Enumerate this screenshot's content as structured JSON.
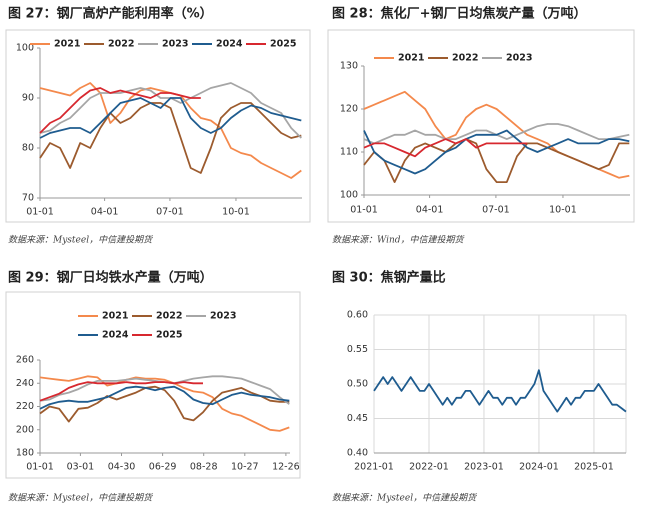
{
  "chart_data": [
    {
      "type": "line",
      "title": "图 27：钢厂高炉产能利用率（%）",
      "source": "数据来源：Mysteel，中信建投期货",
      "x": [
        0,
        14,
        28,
        42,
        56,
        70,
        84,
        98,
        112,
        126,
        140,
        154,
        168,
        182,
        196,
        210,
        224,
        238,
        252,
        266,
        280,
        294,
        308,
        322,
        336,
        350,
        364
      ],
      "xlim": [
        0,
        365
      ],
      "xticks": [
        {
          "value": 0,
          "label": "01-01"
        },
        {
          "value": 90,
          "label": "04-01"
        },
        {
          "value": 181,
          "label": "07-01"
        },
        {
          "value": 273,
          "label": "10-01"
        }
      ],
      "ylim": [
        70,
        100
      ],
      "yticks": [
        70,
        80,
        90,
        100
      ],
      "grid": false,
      "legend": "top",
      "series": [
        {
          "name": "2021",
          "color": "#f4894c",
          "values": [
            92,
            91.5,
            91,
            90.5,
            92,
            93,
            91,
            85,
            87,
            90,
            91.5,
            92,
            91.5,
            91,
            90.5,
            88,
            86,
            85.5,
            84,
            80,
            79,
            78.5,
            77,
            76,
            75,
            74,
            75.5
          ]
        },
        {
          "name": "2022",
          "color": "#9c5b2e",
          "values": [
            78,
            81,
            80,
            76,
            81,
            80,
            84,
            87,
            85,
            86,
            88,
            89,
            89,
            88,
            82,
            76,
            75,
            80,
            86,
            88,
            89,
            89,
            87,
            85,
            83,
            82,
            82.5
          ]
        },
        {
          "name": "2023",
          "color": "#a6a6a6",
          "values": [
            83,
            83.5,
            85,
            86,
            88,
            90,
            91,
            91,
            91,
            91.5,
            92,
            91.5,
            90,
            90,
            89,
            90,
            91,
            92,
            92.5,
            93,
            92,
            91,
            89,
            88,
            87,
            84,
            82
          ]
        },
        {
          "name": "2024",
          "color": "#1f5c8f",
          "values": [
            82,
            83,
            83.5,
            84,
            84,
            83,
            85,
            87,
            89,
            89.5,
            90,
            89,
            88,
            90,
            90,
            86,
            84,
            83,
            84,
            86,
            87.5,
            88.5,
            88,
            87,
            86.5,
            86,
            85.5
          ]
        },
        {
          "name": "2025",
          "color": "#d7282f",
          "values": [
            83,
            85,
            86,
            88,
            90,
            91.5,
            92,
            91,
            91.5,
            91,
            90.5,
            90,
            91,
            91,
            90.5,
            90,
            90,
            null,
            null,
            null,
            null,
            null,
            null,
            null,
            null,
            null,
            null
          ]
        }
      ]
    },
    {
      "type": "line",
      "title": "图 28：焦化厂+钢厂日均焦炭产量（万吨）",
      "source": "数据来源：Wind，中信建投期货",
      "x": [
        0,
        14,
        28,
        42,
        56,
        70,
        84,
        98,
        112,
        126,
        140,
        154,
        168,
        182,
        196,
        210,
        224,
        238,
        252,
        266,
        280,
        294,
        308,
        322,
        336,
        350,
        364
      ],
      "xlim": [
        0,
        365
      ],
      "xticks": [
        {
          "value": 0,
          "label": "01-01"
        },
        {
          "value": 90,
          "label": "04-01"
        },
        {
          "value": 181,
          "label": "07-01"
        },
        {
          "value": 273,
          "label": "10-01"
        }
      ],
      "ylim": [
        100,
        130
      ],
      "yticks": [
        100,
        110,
        120,
        130
      ],
      "grid": false,
      "legend": "top",
      "series": [
        {
          "name": "2021",
          "color": "#f4894c",
          "values": [
            120,
            121,
            122,
            123,
            124,
            122,
            120,
            116,
            113,
            114,
            118,
            120,
            121,
            120,
            118,
            116,
            114,
            113,
            112,
            110,
            109,
            108,
            107,
            106,
            105,
            104,
            104.5
          ]
        },
        {
          "name": "2022",
          "color": "#9c5b2e",
          "values": [
            107,
            110,
            108,
            103,
            108,
            111,
            112,
            111,
            110,
            112,
            113,
            112,
            106,
            103,
            103,
            109,
            112,
            112,
            111,
            110,
            109,
            108,
            107,
            106,
            107,
            112,
            112
          ]
        },
        {
          "name": "2023",
          "color": "#a6a6a6",
          "values": [
            113,
            112,
            113,
            114,
            114,
            115,
            114,
            114,
            113,
            113,
            114,
            115,
            115,
            114,
            113,
            114,
            115,
            116,
            116.5,
            116.5,
            116,
            115,
            114,
            113,
            113,
            113.5,
            114
          ]
        },
        {
          "color": "#1f5c8f",
          "values": [
            115,
            110,
            108,
            107,
            106,
            105,
            106,
            108,
            110,
            111,
            113,
            114,
            114,
            114,
            115,
            113,
            111,
            110,
            111,
            112,
            113,
            112,
            112,
            112,
            113,
            113,
            112.5
          ]
        },
        {
          "color": "#d7282f",
          "values": [
            111,
            112,
            112,
            111,
            110,
            109,
            111,
            112,
            113,
            112,
            113,
            111,
            112,
            112,
            112,
            112,
            112,
            null,
            null,
            null,
            null,
            null,
            null,
            null,
            null,
            null,
            null
          ]
        }
      ]
    },
    {
      "type": "line",
      "title": "图 29：钢厂日均铁水产量（万吨）",
      "source": "数据来源：Mysteel，中信建投期货",
      "x": [
        0,
        14,
        28,
        42,
        56,
        70,
        84,
        98,
        112,
        126,
        140,
        154,
        168,
        182,
        196,
        210,
        224,
        238,
        252,
        266,
        280,
        294,
        308,
        322,
        336,
        350,
        364
      ],
      "xlim": [
        0,
        365
      ],
      "xticks": [
        {
          "value": 0,
          "label": "01-01"
        },
        {
          "value": 59,
          "label": "03-01"
        },
        {
          "value": 119,
          "label": "04-30"
        },
        {
          "value": 179,
          "label": "06-29"
        },
        {
          "value": 239,
          "label": "08-28"
        },
        {
          "value": 299,
          "label": "10-27"
        },
        {
          "value": 359,
          "label": "12-26"
        }
      ],
      "ylim": [
        180,
        260
      ],
      "yticks": [
        180,
        200,
        220,
        240,
        260
      ],
      "grid": false,
      "legend": "top",
      "series": [
        {
          "name": "2021",
          "color": "#f4894c",
          "values": [
            245,
            244,
            243,
            242,
            244,
            246,
            245,
            238,
            240,
            243,
            245,
            244,
            244,
            243,
            240,
            236,
            233,
            232,
            228,
            218,
            214,
            212,
            208,
            204,
            200,
            199,
            202
          ]
        },
        {
          "name": "2022",
          "color": "#9c5b2e",
          "values": [
            214,
            220,
            218,
            207,
            218,
            219,
            223,
            229,
            226,
            229,
            232,
            236,
            237,
            234,
            225,
            210,
            208,
            215,
            225,
            232,
            234,
            236,
            232,
            229,
            225,
            224,
            224
          ]
        },
        {
          "name": "2023",
          "color": "#a6a6a6",
          "values": [
            225,
            226,
            230,
            232,
            235,
            239,
            242,
            242,
            242,
            243,
            244,
            243,
            242,
            241,
            240,
            242,
            244,
            245,
            246,
            246,
            245,
            244,
            241,
            238,
            235,
            228,
            222
          ]
        },
        {
          "name": "2024",
          "color": "#1f5c8f",
          "values": [
            218,
            222,
            224,
            225,
            224,
            224,
            226,
            228,
            232,
            236,
            237,
            236,
            234,
            236,
            237,
            233,
            226,
            223,
            222,
            226,
            230,
            232,
            230,
            229,
            228,
            226,
            225
          ]
        },
        {
          "name": "2025",
          "color": "#d7282f",
          "values": [
            225,
            228,
            231,
            236,
            239,
            241,
            240,
            240,
            240,
            241,
            240,
            240,
            241,
            241,
            240,
            241,
            240,
            240,
            null,
            null,
            null,
            null,
            null,
            null,
            null,
            null,
            null
          ]
        }
      ]
    },
    {
      "type": "line",
      "title": "图 30：焦钢产量比",
      "source": "数据来源：Mysteel，中信建投期货",
      "categories": [
        "2021-01",
        null,
        null,
        null,
        null,
        null,
        null,
        null,
        null,
        null,
        null,
        null,
        "2022-01",
        null,
        null,
        null,
        null,
        null,
        null,
        null,
        null,
        null,
        null,
        null,
        "2023-01",
        null,
        null,
        null,
        null,
        null,
        null,
        null,
        null,
        null,
        null,
        null,
        "2024-01",
        null,
        null,
        null,
        null,
        null,
        null,
        null,
        null,
        null,
        null,
        null,
        "2025-01",
        null,
        null,
        null,
        null,
        null,
        null,
        null
      ],
      "ylim": [
        0.4,
        0.6
      ],
      "yticks": [
        {
          "value": 0.4,
          "label": "0.40"
        },
        0.45,
        {
          "value": 0.5,
          "label": "0.50"
        },
        0.55,
        {
          "value": 0.6,
          "label": "0.60"
        }
      ],
      "grid": true,
      "series": [
        {
          "color": "#1f5c8f",
          "values": [
            0.49,
            0.5,
            0.51,
            0.5,
            0.51,
            0.5,
            0.49,
            0.5,
            0.51,
            0.5,
            0.49,
            0.49,
            0.5,
            0.49,
            0.48,
            0.47,
            0.48,
            0.47,
            0.48,
            0.48,
            0.49,
            0.49,
            0.48,
            0.47,
            0.48,
            0.49,
            0.48,
            0.48,
            0.47,
            0.48,
            0.48,
            0.47,
            0.48,
            0.48,
            0.49,
            0.5,
            0.52,
            0.49,
            0.48,
            0.47,
            0.46,
            0.47,
            0.48,
            0.47,
            0.48,
            0.48,
            0.49,
            0.49,
            0.49,
            0.5,
            0.49,
            0.48,
            0.47,
            0.47,
            0.465,
            0.46
          ]
        }
      ]
    }
  ]
}
